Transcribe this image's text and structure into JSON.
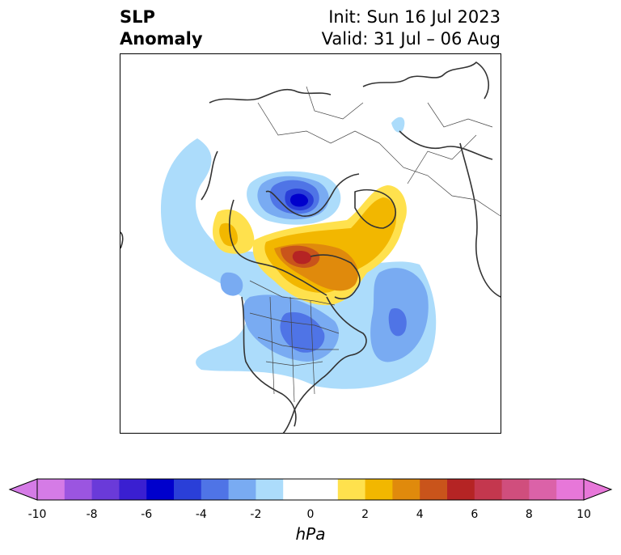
{
  "title": {
    "line1": "SLP",
    "line2": "Anomaly"
  },
  "info": {
    "init": "Init: Sun 16 Jul 2023",
    "valid": "Valid: 31 Jul – 06 Aug"
  },
  "colorbar": {
    "units": "hPa",
    "ticks": [
      "-10",
      "-8",
      "-6",
      "-4",
      "-2",
      "0",
      "2",
      "4",
      "6",
      "8",
      "10"
    ],
    "colors": [
      "#d57be6",
      "#9b55e0",
      "#6a3ad9",
      "#3a1fd1",
      "#0000cc",
      "#2a3fd8",
      "#4f74e6",
      "#79abf2",
      "#acdcfb",
      "#ffffff",
      "#ffffff",
      "#ffe14d",
      "#f2b700",
      "#e08a0c",
      "#c9541b",
      "#b52424",
      "#c4374e",
      "#d04e7d",
      "#db62a8",
      "#e777d9"
    ],
    "extend_left_color": "#d57be6",
    "extend_right_color": "#e777d9"
  }
}
